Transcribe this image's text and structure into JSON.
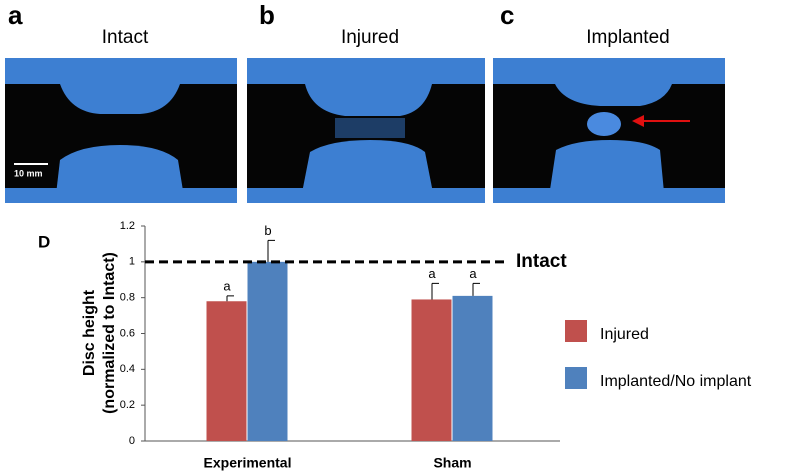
{
  "panels": [
    {
      "letter": "a",
      "title": "Intact",
      "scale_bar": "10 mm"
    },
    {
      "letter": "b",
      "title": "Injured"
    },
    {
      "letter": "c",
      "title": "Implanted"
    }
  ],
  "chart_data": {
    "type": "bar",
    "panel_label": "D",
    "y_label": [
      "Disc height",
      "(normalized to Intact)"
    ],
    "categories": [
      "Experimental",
      "Sham"
    ],
    "series": [
      {
        "name": "Injured",
        "color": "#c0504d",
        "values": [
          0.78,
          0.79
        ],
        "errors": [
          0.03,
          0.09
        ],
        "letters": [
          "a",
          "a"
        ]
      },
      {
        "name": "Implanted/No implant",
        "color": "#4f81bd",
        "values": [
          1.0,
          0.81
        ],
        "errors": [
          0.12,
          0.07
        ],
        "letters": [
          "b",
          "a"
        ]
      }
    ],
    "ylim": [
      0,
      1.2
    ],
    "yticks": [
      0,
      0.2,
      0.4,
      0.6,
      0.8,
      1,
      1.2
    ],
    "reference_line": {
      "value": 1,
      "label": "Intact"
    },
    "legend": "right"
  }
}
